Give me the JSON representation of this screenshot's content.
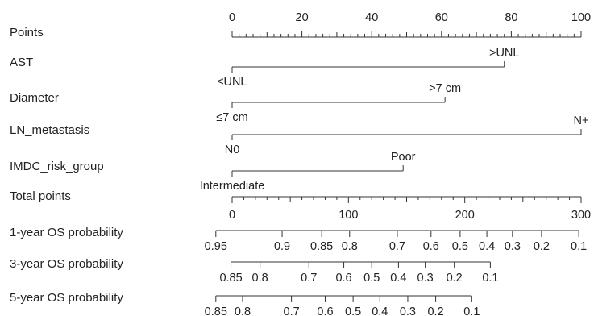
{
  "chart_data": {
    "type": "nomogram",
    "title": "",
    "points_axis": {
      "label": "Points",
      "min": 0,
      "max": 100,
      "major_ticks": [
        0,
        20,
        40,
        60,
        80,
        100
      ],
      "minor_step": 2
    },
    "predictors": [
      {
        "name": "AST",
        "levels": [
          {
            "label": "≤UNL",
            "points": 0
          },
          {
            "label": ">UNL",
            "points": 78
          }
        ]
      },
      {
        "name": "Diameter",
        "levels": [
          {
            "label": "≤7 cm",
            "points": 0
          },
          {
            "label": ">7 cm",
            "points": 61
          }
        ]
      },
      {
        "name": "LN_metastasis",
        "levels": [
          {
            "label": "N0",
            "points": 0
          },
          {
            "label": "N+",
            "points": 100
          }
        ]
      },
      {
        "name": "IMDC_risk_group",
        "levels": [
          {
            "label": "Intermediate",
            "points": 0
          },
          {
            "label": "Poor",
            "points": 49
          }
        ]
      }
    ],
    "total_points_axis": {
      "label": "Total points",
      "min": 0,
      "max": 300,
      "major_ticks": [
        0,
        100,
        200,
        300
      ],
      "minor_step": 10
    },
    "probability_axes": [
      {
        "label": "1-year OS probability",
        "ticks": [
          {
            "label": "0.95",
            "total_points": -14
          },
          {
            "label": "0.9",
            "total_points": 43
          },
          {
            "label": "0.85",
            "total_points": 77
          },
          {
            "label": "0.8",
            "total_points": 101
          },
          {
            "label": "0.7",
            "total_points": 142
          },
          {
            "label": "0.6",
            "total_points": 171
          },
          {
            "label": "0.5",
            "total_points": 196
          },
          {
            "label": "0.4",
            "total_points": 219
          },
          {
            "label": "0.3",
            "total_points": 241
          },
          {
            "label": "0.2",
            "total_points": 266
          },
          {
            "label": "0.1",
            "total_points": 298
          }
        ]
      },
      {
        "label": "3-year OS probability",
        "ticks": [
          {
            "label": "0.85",
            "total_points": -1
          },
          {
            "label": "0.8",
            "total_points": 24
          },
          {
            "label": "0.7",
            "total_points": 66
          },
          {
            "label": "0.6",
            "total_points": 96
          },
          {
            "label": "0.5",
            "total_points": 120
          },
          {
            "label": "0.4",
            "total_points": 143
          },
          {
            "label": "0.3",
            "total_points": 166
          },
          {
            "label": "0.2",
            "total_points": 191
          },
          {
            "label": "0.1",
            "total_points": 222
          }
        ]
      },
      {
        "label": "5-year OS probability",
        "ticks": [
          {
            "label": "0.85",
            "total_points": -14
          },
          {
            "label": "0.8",
            "total_points": 9
          },
          {
            "label": "0.7",
            "total_points": 51
          },
          {
            "label": "0.6",
            "total_points": 80
          },
          {
            "label": "0.5",
            "total_points": 104
          },
          {
            "label": "0.4",
            "total_points": 127
          },
          {
            "label": "0.3",
            "total_points": 151
          },
          {
            "label": "0.2",
            "total_points": 175
          },
          {
            "label": "0.1",
            "total_points": 206
          }
        ]
      }
    ]
  }
}
